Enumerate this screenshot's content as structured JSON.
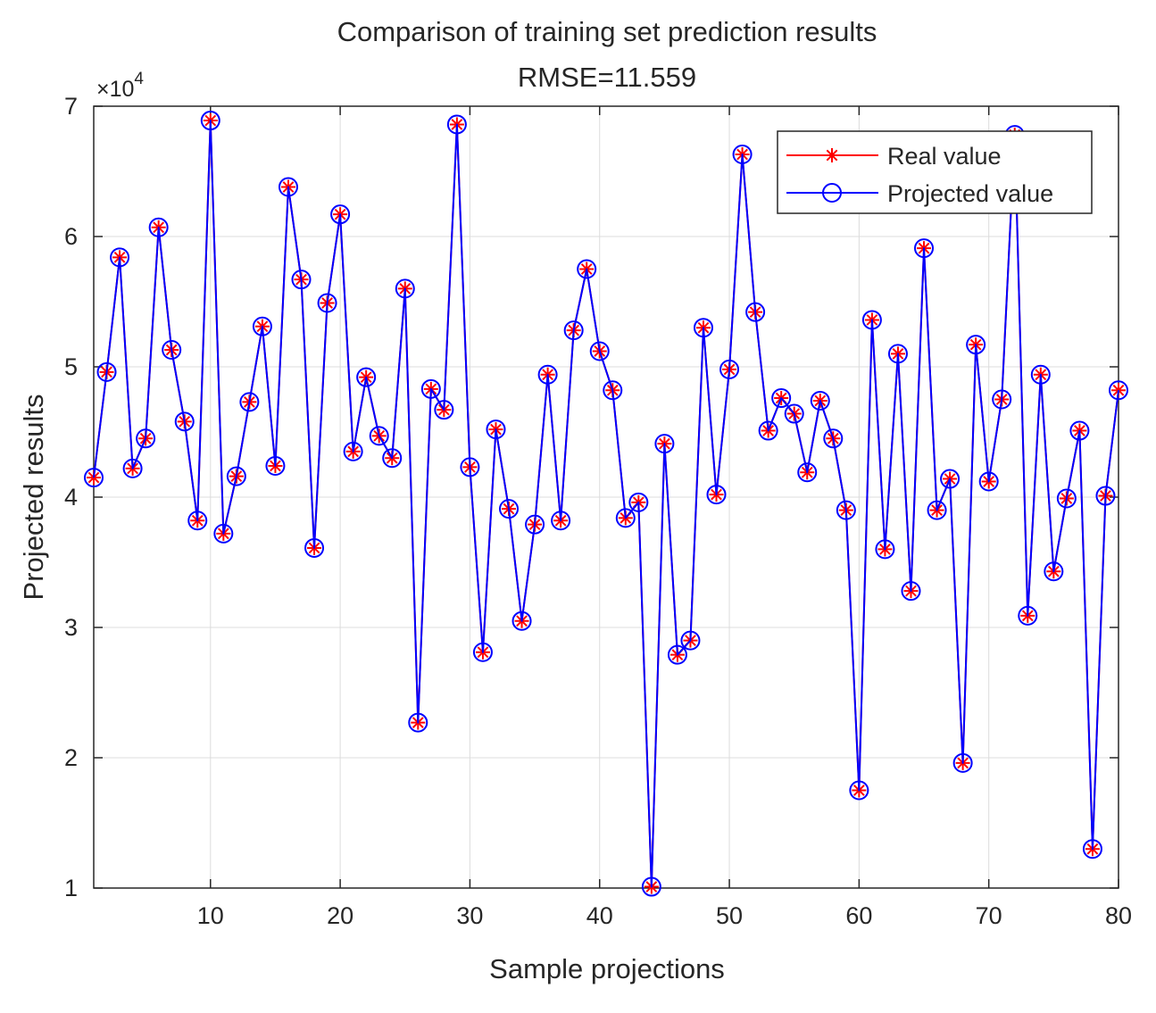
{
  "chart_data": {
    "type": "line",
    "title": "Comparison of training set prediction results",
    "subtitle": "RMSE=11.559",
    "xlabel": "Sample projections",
    "ylabel": "Projected results",
    "exponent_label": "×10",
    "exponent_power": "4",
    "y_scale": 10000,
    "xlim": [
      1,
      80
    ],
    "ylim": [
      10000,
      70000
    ],
    "xticks": [
      10,
      20,
      30,
      40,
      50,
      60,
      70,
      80
    ],
    "yticks": [
      10000,
      20000,
      30000,
      40000,
      50000,
      60000,
      70000
    ],
    "ytick_labels": [
      "1",
      "2",
      "3",
      "4",
      "5",
      "6",
      "7"
    ],
    "grid": true,
    "legend_position": "top-right",
    "x": [
      1,
      2,
      3,
      4,
      5,
      6,
      7,
      8,
      9,
      10,
      11,
      12,
      13,
      14,
      15,
      16,
      17,
      18,
      19,
      20,
      21,
      22,
      23,
      24,
      25,
      26,
      27,
      28,
      29,
      30,
      31,
      32,
      33,
      34,
      35,
      36,
      37,
      38,
      39,
      40,
      41,
      42,
      43,
      44,
      45,
      46,
      47,
      48,
      49,
      50,
      51,
      52,
      53,
      54,
      55,
      56,
      57,
      58,
      59,
      60,
      61,
      62,
      63,
      64,
      65,
      66,
      67,
      68,
      69,
      70,
      71,
      72,
      73,
      74,
      75,
      76,
      77,
      78,
      79,
      80
    ],
    "series": [
      {
        "name": "Real value",
        "color": "#ff0000",
        "marker": "asterisk",
        "values": [
          41500,
          49600,
          58400,
          42200,
          44500,
          60700,
          51300,
          45800,
          38200,
          68900,
          37200,
          41600,
          47300,
          53100,
          42400,
          63800,
          56700,
          36100,
          54900,
          61700,
          43500,
          49200,
          44700,
          43000,
          56000,
          22700,
          48300,
          46700,
          68600,
          42300,
          28100,
          45200,
          39100,
          30500,
          37900,
          49400,
          38200,
          52800,
          57500,
          51200,
          48200,
          38400,
          39600,
          10100,
          44100,
          27900,
          29000,
          53000,
          40200,
          49800,
          66300,
          54200,
          45100,
          47600,
          46400,
          41900,
          47400,
          44500,
          39000,
          17500,
          53600,
          36000,
          51000,
          32800,
          59100,
          39000,
          41400,
          19600,
          51700,
          41200,
          47500,
          67800,
          30900,
          49400,
          34300,
          39900,
          45100,
          13000,
          40100,
          48200
        ]
      },
      {
        "name": "Projected value",
        "color": "#0000ff",
        "marker": "circle",
        "values": [
          41500,
          49600,
          58400,
          42200,
          44500,
          60700,
          51300,
          45800,
          38200,
          68900,
          37200,
          41600,
          47300,
          53100,
          42400,
          63800,
          56700,
          36100,
          54900,
          61700,
          43500,
          49200,
          44700,
          43000,
          56000,
          22700,
          48300,
          46700,
          68600,
          42300,
          28100,
          45200,
          39100,
          30500,
          37900,
          49400,
          38200,
          52800,
          57500,
          51200,
          48200,
          38400,
          39600,
          10100,
          44100,
          27900,
          29000,
          53000,
          40200,
          49800,
          66300,
          54200,
          45100,
          47600,
          46400,
          41900,
          47400,
          44500,
          39000,
          17500,
          53600,
          36000,
          51000,
          32800,
          59100,
          39000,
          41400,
          19600,
          51700,
          41200,
          47500,
          67800,
          30900,
          49400,
          34300,
          39900,
          45100,
          13000,
          40100,
          48200
        ]
      }
    ]
  }
}
